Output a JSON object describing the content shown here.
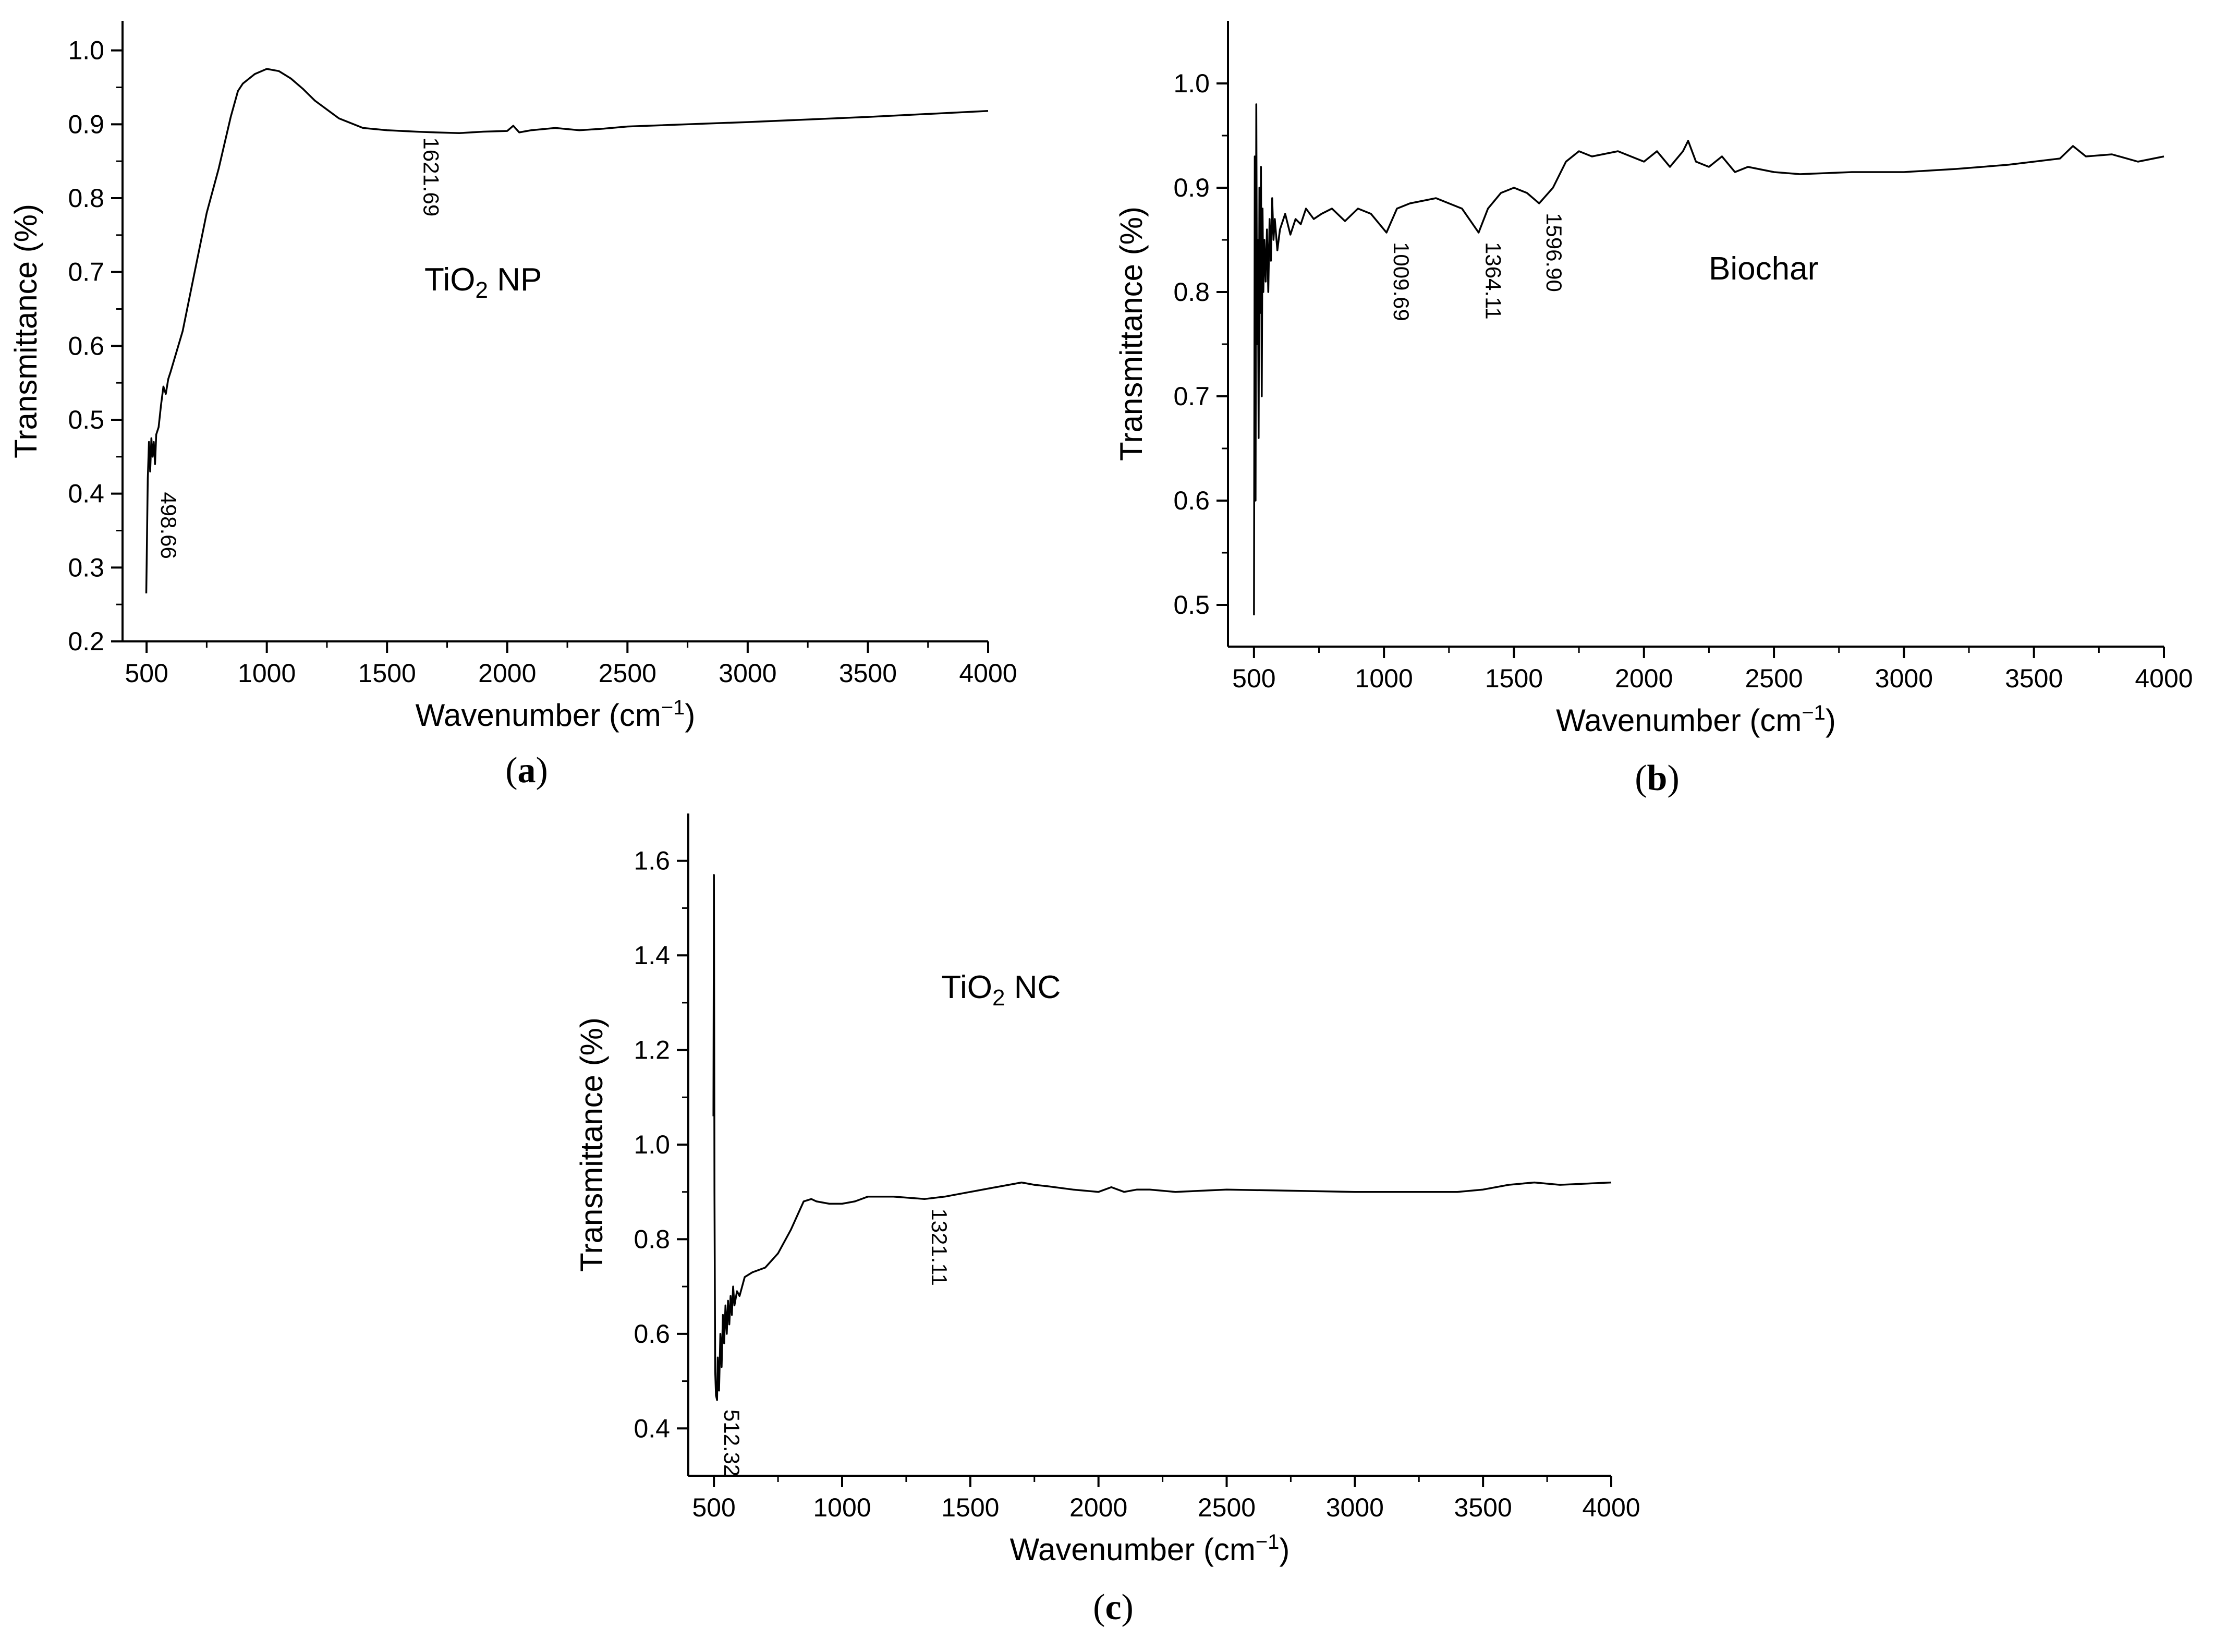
{
  "colors": {
    "line": "#000000",
    "axis": "#000000",
    "background": "#ffffff"
  },
  "chart_data": [
    {
      "id": "a",
      "type": "line",
      "caption_letter": "a",
      "sample_label": {
        "main": "TiO",
        "sub": "2",
        "rest": " NP"
      },
      "sample_label_at": {
        "x": 1900,
        "y": 0.675
      },
      "xlabel": {
        "main": "Wavenumber (cm",
        "sup": "−1",
        "rest": ")"
      },
      "ylabel": "Transmittance (%)",
      "xlim": [
        400,
        4000
      ],
      "ylim": [
        0.2,
        1.04
      ],
      "xticks": [
        500,
        1000,
        1500,
        2000,
        2500,
        3000,
        3500,
        4000
      ],
      "xtick_labels": [
        "500",
        "1000",
        "1500",
        "2000",
        "2500",
        "3000",
        "3500",
        "4000"
      ],
      "yticks": [
        0.2,
        0.3,
        0.4,
        0.5,
        0.6,
        0.7,
        0.8,
        0.9,
        1.0
      ],
      "ytick_labels": [
        "0.2",
        "0.3",
        "0.4",
        "0.5",
        "0.6",
        "0.7",
        "0.8",
        "0.9",
        "1.0"
      ],
      "peaks": [
        {
          "label": "498.66",
          "x": 530,
          "y": 0.415,
          "side": "below"
        },
        {
          "label": "1621.69",
          "x": 1621.69,
          "y": 0.895,
          "side": "below"
        }
      ],
      "series": [
        {
          "name": "TiO2 NP",
          "x": [
            498.66,
            505,
            510,
            515,
            520,
            525,
            530,
            535,
            540,
            550,
            560,
            570,
            580,
            590,
            600,
            650,
            700,
            750,
            800,
            850,
            880,
            900,
            950,
            1000,
            1050,
            1100,
            1150,
            1200,
            1300,
            1400,
            1500,
            1621.69,
            1700,
            1800,
            1900,
            2000,
            2025,
            2050,
            2100,
            2200,
            2300,
            2400,
            2500,
            3000,
            3500,
            4000
          ],
          "y": [
            0.265,
            0.42,
            0.47,
            0.43,
            0.475,
            0.45,
            0.47,
            0.44,
            0.48,
            0.49,
            0.52,
            0.545,
            0.535,
            0.555,
            0.565,
            0.62,
            0.7,
            0.78,
            0.84,
            0.91,
            0.945,
            0.955,
            0.968,
            0.975,
            0.972,
            0.962,
            0.948,
            0.932,
            0.908,
            0.895,
            0.892,
            0.89,
            0.889,
            0.888,
            0.89,
            0.891,
            0.898,
            0.889,
            0.892,
            0.895,
            0.892,
            0.894,
            0.897,
            0.903,
            0.91,
            0.918
          ]
        }
      ]
    },
    {
      "id": "b",
      "type": "line",
      "caption_letter": "b",
      "sample_label": {
        "main": "Biochar",
        "sub": "",
        "rest": ""
      },
      "sample_label_at": {
        "x": 2460,
        "y": 0.812
      },
      "xlabel": {
        "main": "Wavenumber (cm",
        "sup": "−1",
        "rest": ")"
      },
      "ylabel": "Transmittance (%)",
      "xlim": [
        400,
        4000
      ],
      "ylim": [
        0.46,
        1.06
      ],
      "xticks": [
        500,
        1000,
        1500,
        2000,
        2500,
        3000,
        3500,
        4000
      ],
      "xtick_labels": [
        "500",
        "1000",
        "1500",
        "2000",
        "2500",
        "3000",
        "3500",
        "4000"
      ],
      "yticks": [
        0.5,
        0.6,
        0.7,
        0.8,
        0.9,
        1.0
      ],
      "ytick_labels": [
        "0.5",
        "0.6",
        "0.7",
        "0.8",
        "0.9",
        "1.0"
      ],
      "peaks": [
        {
          "label": "1009.69",
          "x": 1009.69,
          "y": 0.857,
          "side": "below"
        },
        {
          "label": "1364.11",
          "x": 1364.11,
          "y": 0.857,
          "side": "below"
        },
        {
          "label": "1596.90",
          "x": 1596.9,
          "y": 0.885,
          "side": "below"
        }
      ],
      "series": [
        {
          "name": "Biochar",
          "x": [
            500,
            503,
            506,
            509,
            512,
            515,
            518,
            521,
            524,
            527,
            530,
            533,
            536,
            540,
            545,
            550,
            555,
            560,
            565,
            570,
            575,
            580,
            590,
            600,
            620,
            640,
            660,
            680,
            700,
            730,
            760,
            800,
            850,
            900,
            950,
            1009.69,
            1050,
            1100,
            1200,
            1250,
            1300,
            1364.11,
            1400,
            1450,
            1500,
            1550,
            1596.9,
            1650,
            1700,
            1750,
            1800,
            1900,
            2000,
            2050,
            2100,
            2150,
            2170,
            2200,
            2250,
            2300,
            2350,
            2400,
            2500,
            2600,
            2800,
            3000,
            3200,
            3400,
            3600,
            3650,
            3700,
            3800,
            3900,
            4000
          ],
          "y": [
            0.49,
            0.93,
            0.6,
            0.98,
            0.75,
            0.85,
            0.66,
            0.9,
            0.78,
            0.92,
            0.7,
            0.88,
            0.8,
            0.85,
            0.81,
            0.86,
            0.8,
            0.87,
            0.83,
            0.89,
            0.85,
            0.87,
            0.84,
            0.86,
            0.875,
            0.855,
            0.87,
            0.865,
            0.88,
            0.87,
            0.875,
            0.88,
            0.868,
            0.88,
            0.875,
            0.857,
            0.88,
            0.885,
            0.89,
            0.885,
            0.88,
            0.857,
            0.88,
            0.895,
            0.9,
            0.895,
            0.885,
            0.9,
            0.925,
            0.935,
            0.93,
            0.935,
            0.925,
            0.935,
            0.92,
            0.935,
            0.945,
            0.925,
            0.92,
            0.93,
            0.915,
            0.92,
            0.915,
            0.913,
            0.915,
            0.915,
            0.918,
            0.922,
            0.928,
            0.94,
            0.93,
            0.932,
            0.925,
            0.93
          ]
        }
      ]
    },
    {
      "id": "c",
      "type": "line",
      "caption_letter": "c",
      "sample_label": {
        "main": "TiO",
        "sub": "2",
        "rest": " NC"
      },
      "sample_label_at": {
        "x": 1620,
        "y": 1.31
      },
      "xlabel": {
        "main": "Wavenumber (cm",
        "sup": "−1",
        "rest": ")"
      },
      "ylabel": "Transmittance (%)",
      "xlim": [
        400,
        4000
      ],
      "ylim": [
        0.3,
        1.7
      ],
      "xticks": [
        500,
        1000,
        1500,
        2000,
        2500,
        3000,
        3500,
        4000
      ],
      "xtick_labels": [
        "500",
        "1000",
        "1500",
        "2000",
        "2500",
        "3000",
        "3500",
        "4000"
      ],
      "yticks": [
        0.4,
        0.6,
        0.8,
        1.0,
        1.2,
        1.4,
        1.6
      ],
      "ytick_labels": [
        "0.4",
        "0.6",
        "0.8",
        "1.0",
        "1.2",
        "1.4",
        "1.6"
      ],
      "peaks": [
        {
          "label": "512.32",
          "x": 512.32,
          "y": 0.46,
          "side": "below"
        },
        {
          "label": "1321.11",
          "x": 1321.11,
          "y": 0.885,
          "side": "below"
        }
      ],
      "series": [
        {
          "name": "TiO2 NC",
          "x": [
            498,
            500,
            502,
            505,
            508,
            512.32,
            515,
            520,
            525,
            530,
            535,
            540,
            545,
            550,
            555,
            560,
            565,
            570,
            575,
            580,
            590,
            600,
            620,
            650,
            700,
            750,
            800,
            850,
            880,
            900,
            950,
            1000,
            1050,
            1100,
            1200,
            1321.11,
            1400,
            1500,
            1600,
            1700,
            1750,
            1800,
            1900,
            2000,
            2050,
            2100,
            2150,
            2200,
            2300,
            2500,
            3000,
            3400,
            3500,
            3600,
            3700,
            3800,
            4000
          ],
          "y": [
            1.06,
            1.57,
            0.9,
            0.52,
            0.47,
            0.46,
            0.55,
            0.48,
            0.6,
            0.53,
            0.64,
            0.58,
            0.66,
            0.6,
            0.67,
            0.62,
            0.68,
            0.64,
            0.7,
            0.66,
            0.69,
            0.68,
            0.72,
            0.73,
            0.74,
            0.77,
            0.82,
            0.88,
            0.885,
            0.88,
            0.875,
            0.875,
            0.88,
            0.89,
            0.89,
            0.885,
            0.89,
            0.9,
            0.91,
            0.92,
            0.915,
            0.912,
            0.905,
            0.9,
            0.91,
            0.9,
            0.905,
            0.905,
            0.9,
            0.905,
            0.9,
            0.9,
            0.905,
            0.915,
            0.92,
            0.915,
            0.92
          ]
        }
      ]
    }
  ]
}
